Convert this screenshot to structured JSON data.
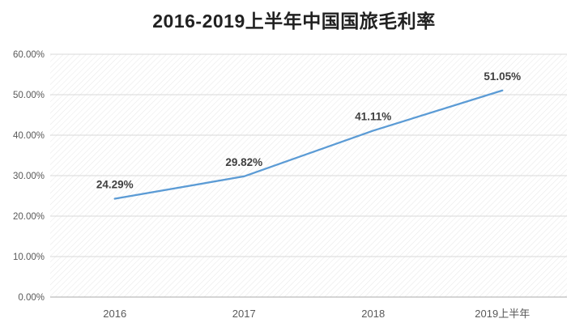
{
  "chart_data": {
    "type": "line",
    "title": "2016-2019上半年中国国旅毛利率",
    "categories": [
      "2016",
      "2017",
      "2018",
      "2019上半年"
    ],
    "values": [
      24.29,
      29.82,
      41.11,
      51.05
    ],
    "data_labels": [
      "24.29%",
      "29.82%",
      "41.11%",
      "51.05%"
    ],
    "xlabel": "",
    "ylabel": "",
    "ylim": [
      0,
      60
    ],
    "ytick_step": 10,
    "ytick_labels": [
      "0.00%",
      "10.00%",
      "20.00%",
      "30.00%",
      "40.00%",
      "50.00%",
      "60.00%"
    ],
    "grid": true,
    "legend": "none",
    "line_color": "#5b9bd5",
    "label_color": "#3f3f3f",
    "axis_text_color": "#595959",
    "gridline_color": "#d9d9d9",
    "axis_line_color": "#ababab",
    "hatch_color": "#e7e7e7",
    "background": "#ffffff"
  }
}
